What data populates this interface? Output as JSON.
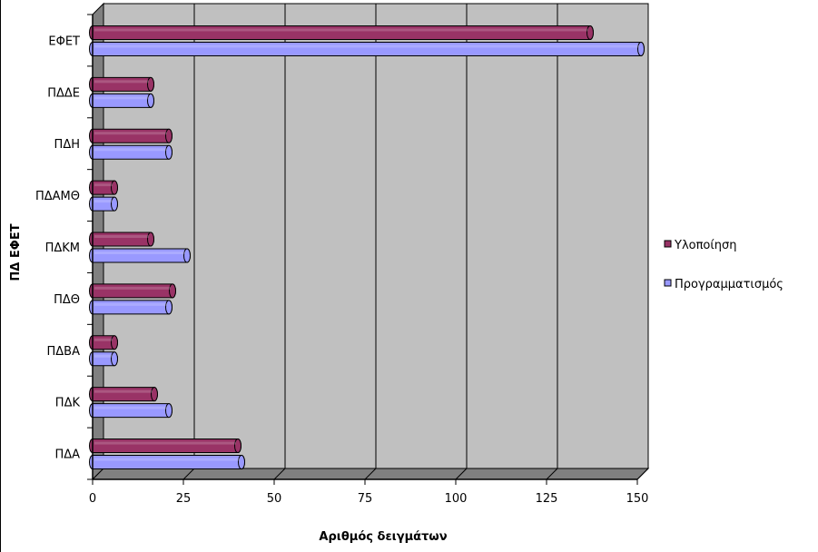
{
  "chart_data": {
    "type": "bar",
    "orientation": "horizontal",
    "three_d": true,
    "categories": [
      "ΕΦΕΤ",
      "ΠΔΔΕ",
      "ΠΔΗ",
      "ΠΔΑΜΘ",
      "ΠΔΚΜ",
      "ΠΔΘ",
      "ΠΔΒΑ",
      "ΠΔΚ",
      "ΠΔΑ"
    ],
    "series": [
      {
        "name": "Υλοποίηση",
        "color": "#993366",
        "values": [
          137,
          16,
          21,
          6,
          16,
          22,
          6,
          17,
          40
        ]
      },
      {
        "name": "Προγραμματισμός",
        "color": "#9999ff",
        "values": [
          151,
          16,
          21,
          6,
          26,
          21,
          6,
          21,
          41
        ]
      }
    ],
    "xlabel": "Αριθμός δειγμάτων",
    "ylabel": "ΠΔ ΕΦΕΤ",
    "xlim": [
      0,
      150
    ],
    "xticks": [
      "0",
      "25",
      "50",
      "75",
      "100",
      "125",
      "150"
    ],
    "grid": true,
    "plot_background": "#c0c0c0",
    "legend_position": "right"
  }
}
